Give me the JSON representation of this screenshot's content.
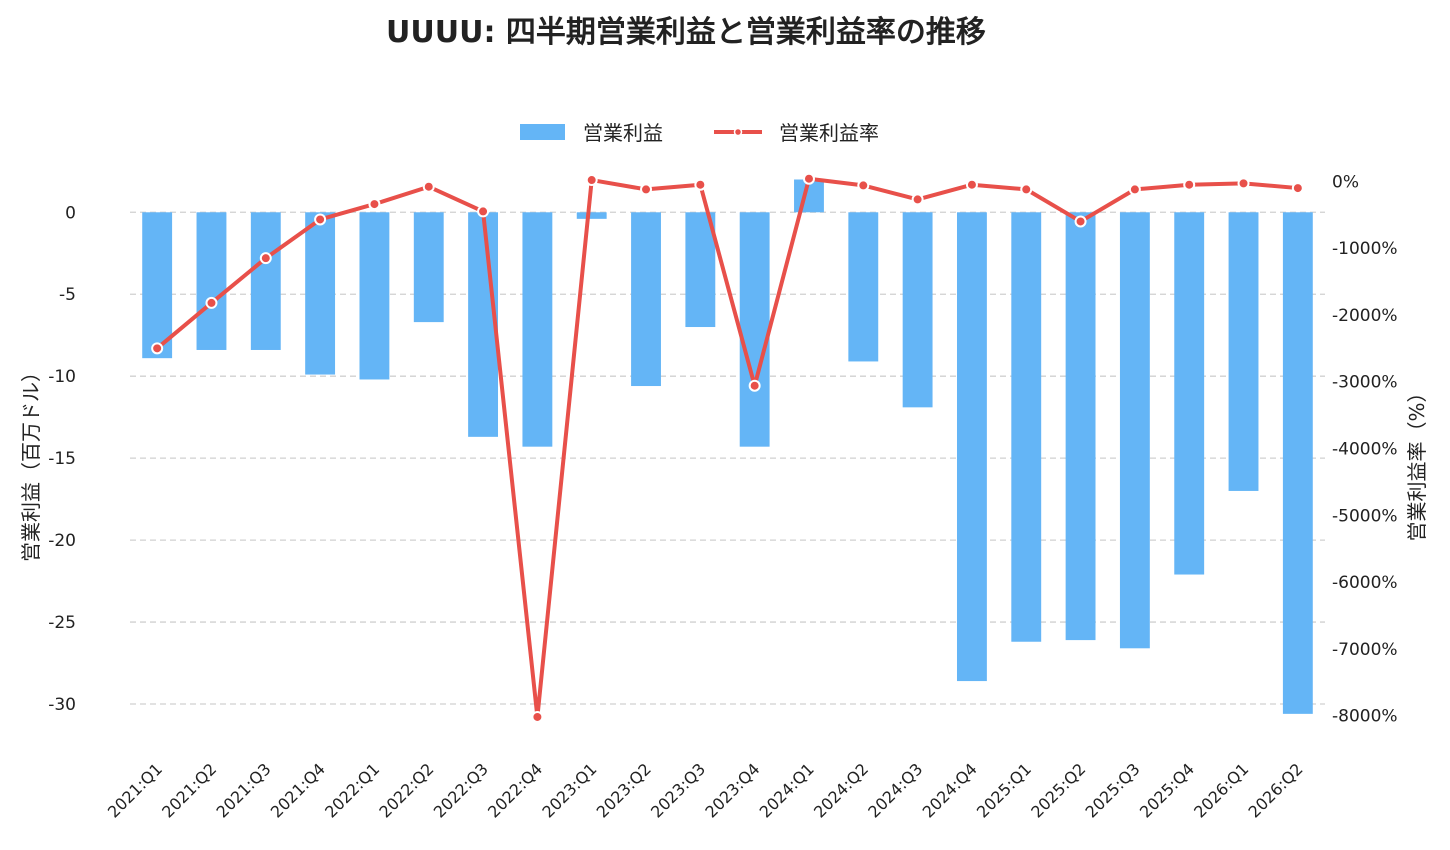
{
  "chart_data": {
    "type": "bar",
    "title": "UUUU: 四半期営業利益と営業利益率の推移",
    "categories": [
      "2021:Q1",
      "2021:Q2",
      "2021:Q3",
      "2021:Q4",
      "2022:Q1",
      "2022:Q2",
      "2022:Q3",
      "2022:Q4",
      "2023:Q1",
      "2023:Q2",
      "2023:Q3",
      "2023:Q4",
      "2024:Q1",
      "2024:Q2",
      "2024:Q3",
      "2024:Q4",
      "2025:Q1",
      "2025:Q2",
      "2025:Q3",
      "2025:Q4",
      "2026:Q1",
      "2026:Q2"
    ],
    "series": [
      {
        "name": "営業利益",
        "type": "bar",
        "axis": "left",
        "color": "#64b5f6",
        "values": [
          -8.9,
          -8.4,
          -8.4,
          -9.9,
          -10.2,
          -6.7,
          -13.7,
          -14.3,
          -0.4,
          -10.6,
          -7.0,
          -14.3,
          2.0,
          -9.1,
          -11.9,
          -28.6,
          -26.2,
          -26.1,
          -26.6,
          -22.1,
          -17.0,
          -30.6
        ]
      },
      {
        "name": "営業利益率",
        "type": "line",
        "axis": "right",
        "color": "#e8504a",
        "values": [
          -2500,
          -1820,
          -1150,
          -570,
          -340,
          -80,
          -450,
          -8020,
          20,
          -120,
          -50,
          -3060,
          40,
          -60,
          -270,
          -50,
          -120,
          -600,
          -120,
          -50,
          -30,
          -100
        ]
      }
    ],
    "left_axis": {
      "label": "営業利益（百万ドル）",
      "ylim": [
        -32.5,
        3.8
      ],
      "ticks": [
        0,
        -5,
        -10,
        -15,
        -20,
        -25,
        -30
      ],
      "tick_labels": [
        "0",
        "-5",
        "-10",
        "-15",
        "-20",
        "-25",
        "-30"
      ]
    },
    "right_axis": {
      "label": "営業利益率（%）",
      "ylim": [
        -8440,
        470
      ],
      "ticks": [
        0,
        -1000,
        -2000,
        -3000,
        -4000,
        -5000,
        -6000,
        -7000,
        -8000
      ],
      "tick_labels": [
        "0%",
        "-1000%",
        "-2000%",
        "-3000%",
        "-4000%",
        "-5000%",
        "-6000%",
        "-7000%",
        "-8000%"
      ]
    },
    "grid": true,
    "legend": "top-center"
  }
}
